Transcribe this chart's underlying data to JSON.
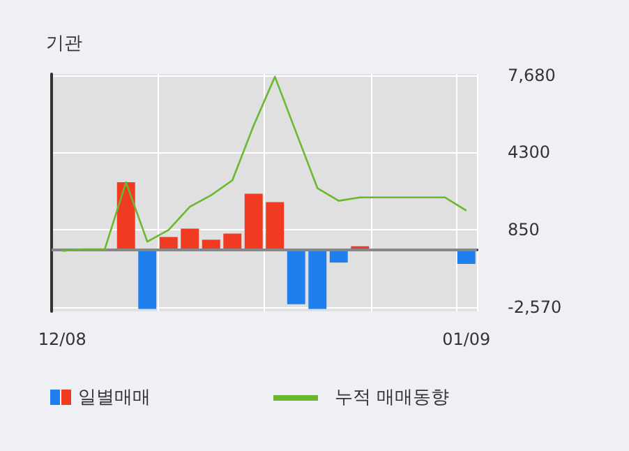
{
  "chart_data": {
    "type": "bar",
    "title": "기관",
    "categories": [
      "12/08",
      null,
      null,
      null,
      null,
      null,
      null,
      null,
      null,
      null,
      null,
      null,
      null,
      null,
      null,
      null,
      null,
      null,
      null,
      "01/09"
    ],
    "series": [
      {
        "name": "일별매매",
        "values": [
          0,
          0,
          0,
          2960,
          -2640,
          540,
          910,
          420,
          690,
          2450,
          2080,
          -2430,
          -2640,
          -590,
          130,
          0,
          0,
          0,
          0,
          -650
        ],
        "colors": [
          "#f03a22",
          "#f03a22",
          "#f03a22",
          "#f03a22",
          "#1f7fef",
          "#f03a22",
          "#f03a22",
          "#f03a22",
          "#f03a22",
          "#f03a22",
          "#f03a22",
          "#1f7fef",
          "#1f7fef",
          "#1f7fef",
          "#f03a22",
          "#f03a22",
          "#f03a22",
          "#f03a22",
          "#f03a22",
          "#1f7fef"
        ]
      },
      {
        "name": "누적 매매동향",
        "type": "line",
        "color": "#6ab82e",
        "values": [
          -80,
          0,
          0,
          2960,
          335,
          850,
          1880,
          2390,
          3050,
          5470,
          7630,
          5160,
          2700,
          2140,
          2290,
          2290,
          2290,
          2290,
          2290,
          1710
        ]
      }
    ],
    "ylim": [
      -2750,
      7750
    ],
    "yticks": [
      {
        "value": -2570,
        "label": "-2,570"
      },
      850,
      4300,
      {
        "value": 7680,
        "label": "7,680"
      }
    ],
    "ref_lines": [
      {
        "axis": "y",
        "value": 0,
        "color": "#888888"
      }
    ],
    "grid": true,
    "legend": "bottom",
    "marker": "none"
  }
}
